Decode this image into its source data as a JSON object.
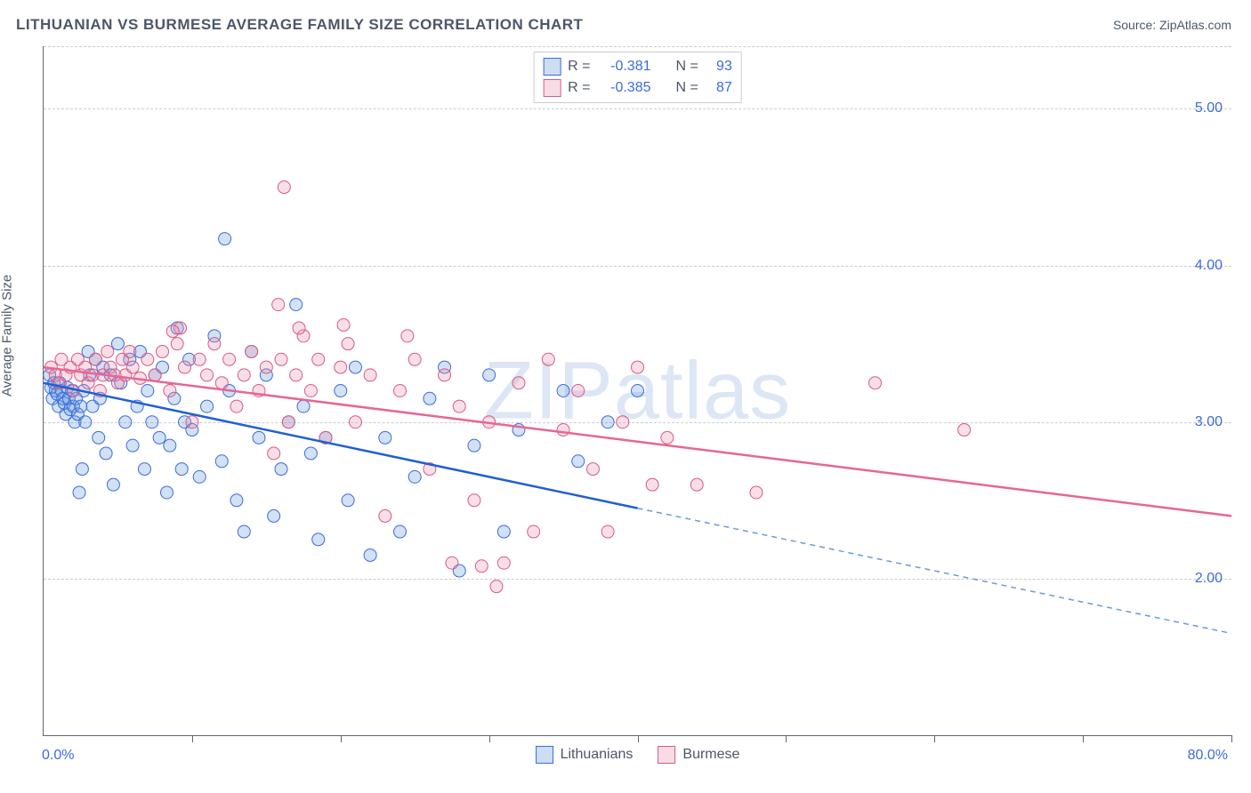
{
  "title": "LITHUANIAN VS BURMESE AVERAGE FAMILY SIZE CORRELATION CHART",
  "source_label": "Source:",
  "source_name": "ZipAtlas.com",
  "y_axis_label": "Average Family Size",
  "watermark": "ZIPatlas",
  "chart": {
    "type": "scatter",
    "xlim": [
      0,
      80
    ],
    "ylim": [
      1,
      5.4
    ],
    "x_tick_positions": [
      0,
      10,
      20,
      30,
      40,
      50,
      60,
      70,
      80
    ],
    "x_tick_first_label": "0.0%",
    "x_tick_last_label": "80.0%",
    "y_ticks": [
      2.0,
      3.0,
      4.0,
      5.0
    ],
    "y_tick_labels": [
      "2.00",
      "3.00",
      "4.00",
      "5.00"
    ],
    "grid_color": "#c8ccd2",
    "grid_dash": "4,4",
    "axis_color": "#5f6673",
    "background": "#ffffff",
    "tick_label_color": "#3a6cde",
    "marker_radius": 7,
    "marker_stroke_width": 1,
    "fill_opacity": 0.3,
    "trend_line_width": 2.5,
    "dash_pattern": "6,5",
    "series": [
      {
        "name": "Lithuanians",
        "fill": "#6a9bd8",
        "stroke": "#3a6cde",
        "R": "-0.381",
        "N": "93",
        "trend": {
          "x1": 0,
          "y1": 3.25,
          "x2": 40,
          "y2": 2.45,
          "extend_to": 80,
          "main_color": "#1e5fd6",
          "ext_color": "#6a9bd8"
        },
        "points": [
          [
            0.4,
            3.3
          ],
          [
            0.5,
            3.22
          ],
          [
            0.6,
            3.15
          ],
          [
            0.7,
            3.25
          ],
          [
            0.8,
            3.2
          ],
          [
            0.9,
            3.18
          ],
          [
            1.0,
            3.1
          ],
          [
            1.1,
            3.25
          ],
          [
            1.2,
            3.2
          ],
          [
            1.3,
            3.15
          ],
          [
            1.4,
            3.12
          ],
          [
            1.5,
            3.05
          ],
          [
            1.6,
            3.22
          ],
          [
            1.7,
            3.15
          ],
          [
            1.8,
            3.08
          ],
          [
            1.9,
            3.2
          ],
          [
            2.0,
            3.1
          ],
          [
            2.1,
            3.0
          ],
          [
            2.2,
            3.15
          ],
          [
            2.3,
            3.05
          ],
          [
            2.5,
            3.1
          ],
          [
            2.6,
            2.7
          ],
          [
            2.7,
            3.2
          ],
          [
            2.8,
            3.0
          ],
          [
            3.0,
            3.45
          ],
          [
            3.1,
            3.3
          ],
          [
            3.3,
            3.1
          ],
          [
            3.5,
            3.4
          ],
          [
            3.7,
            2.9
          ],
          [
            3.8,
            3.15
          ],
          [
            4.0,
            3.35
          ],
          [
            4.2,
            2.8
          ],
          [
            4.5,
            3.3
          ],
          [
            4.7,
            2.6
          ],
          [
            5.0,
            3.5
          ],
          [
            5.2,
            3.25
          ],
          [
            5.5,
            3.0
          ],
          [
            5.8,
            3.4
          ],
          [
            6.0,
            2.85
          ],
          [
            6.3,
            3.1
          ],
          [
            6.5,
            3.45
          ],
          [
            6.8,
            2.7
          ],
          [
            7.0,
            3.2
          ],
          [
            7.3,
            3.0
          ],
          [
            7.5,
            3.3
          ],
          [
            7.8,
            2.9
          ],
          [
            8.0,
            3.35
          ],
          [
            8.3,
            2.55
          ],
          [
            8.5,
            2.85
          ],
          [
            8.8,
            3.15
          ],
          [
            9.0,
            3.6
          ],
          [
            9.3,
            2.7
          ],
          [
            9.5,
            3.0
          ],
          [
            9.8,
            3.4
          ],
          [
            10.0,
            2.95
          ],
          [
            10.5,
            2.65
          ],
          [
            11.0,
            3.1
          ],
          [
            11.5,
            3.55
          ],
          [
            12.0,
            2.75
          ],
          [
            12.5,
            3.2
          ],
          [
            13.0,
            2.5
          ],
          [
            13.5,
            2.3
          ],
          [
            14.0,
            3.45
          ],
          [
            14.5,
            2.9
          ],
          [
            15.0,
            3.3
          ],
          [
            15.5,
            2.4
          ],
          [
            16.0,
            2.7
          ],
          [
            16.5,
            3.0
          ],
          [
            17.0,
            3.75
          ],
          [
            17.5,
            3.1
          ],
          [
            18.0,
            2.8
          ],
          [
            18.5,
            2.25
          ],
          [
            19.0,
            2.9
          ],
          [
            20.0,
            3.2
          ],
          [
            20.5,
            2.5
          ],
          [
            21.0,
            3.35
          ],
          [
            22.0,
            2.15
          ],
          [
            23.0,
            2.9
          ],
          [
            24.0,
            2.3
          ],
          [
            25.0,
            2.65
          ],
          [
            26.0,
            3.15
          ],
          [
            27.0,
            3.35
          ],
          [
            28.0,
            2.05
          ],
          [
            29.0,
            2.85
          ],
          [
            30.0,
            3.3
          ],
          [
            31.0,
            2.3
          ],
          [
            32.0,
            2.95
          ],
          [
            35.0,
            3.2
          ],
          [
            36.0,
            2.75
          ],
          [
            38.0,
            3.0
          ],
          [
            40.0,
            3.2
          ],
          [
            12.2,
            4.17
          ],
          [
            2.4,
            2.55
          ]
        ]
      },
      {
        "name": "Burmese",
        "fill": "#e795b0",
        "stroke": "#d85a85",
        "R": "-0.385",
        "N": "87",
        "trend": {
          "x1": 0,
          "y1": 3.35,
          "x2": 80,
          "y2": 2.4,
          "extend_to": null,
          "main_color": "#e86595",
          "ext_color": null
        },
        "points": [
          [
            0.5,
            3.35
          ],
          [
            0.8,
            3.3
          ],
          [
            1.0,
            3.25
          ],
          [
            1.2,
            3.4
          ],
          [
            1.5,
            3.3
          ],
          [
            1.8,
            3.35
          ],
          [
            2.0,
            3.2
          ],
          [
            2.3,
            3.4
          ],
          [
            2.5,
            3.3
          ],
          [
            2.8,
            3.35
          ],
          [
            3.0,
            3.25
          ],
          [
            3.3,
            3.3
          ],
          [
            3.5,
            3.4
          ],
          [
            3.8,
            3.2
          ],
          [
            4.0,
            3.3
          ],
          [
            4.3,
            3.45
          ],
          [
            4.5,
            3.35
          ],
          [
            4.8,
            3.3
          ],
          [
            5.0,
            3.25
          ],
          [
            5.3,
            3.4
          ],
          [
            5.5,
            3.3
          ],
          [
            5.8,
            3.45
          ],
          [
            6.0,
            3.35
          ],
          [
            6.5,
            3.28
          ],
          [
            7.0,
            3.4
          ],
          [
            7.5,
            3.3
          ],
          [
            8.0,
            3.45
          ],
          [
            8.5,
            3.2
          ],
          [
            9.0,
            3.5
          ],
          [
            9.5,
            3.35
          ],
          [
            10.0,
            3.0
          ],
          [
            10.5,
            3.4
          ],
          [
            11.0,
            3.3
          ],
          [
            11.5,
            3.5
          ],
          [
            12.0,
            3.25
          ],
          [
            12.5,
            3.4
          ],
          [
            13.0,
            3.1
          ],
          [
            13.5,
            3.3
          ],
          [
            14.0,
            3.45
          ],
          [
            14.5,
            3.2
          ],
          [
            15.0,
            3.35
          ],
          [
            15.5,
            2.8
          ],
          [
            16.0,
            3.4
          ],
          [
            16.5,
            3.0
          ],
          [
            17.0,
            3.3
          ],
          [
            17.5,
            3.55
          ],
          [
            18.0,
            3.2
          ],
          [
            18.5,
            3.4
          ],
          [
            19.0,
            2.9
          ],
          [
            20.0,
            3.35
          ],
          [
            20.5,
            3.5
          ],
          [
            21.0,
            3.0
          ],
          [
            22.0,
            3.3
          ],
          [
            23.0,
            2.4
          ],
          [
            24.0,
            3.2
          ],
          [
            25.0,
            3.4
          ],
          [
            26.0,
            2.7
          ],
          [
            27.0,
            3.3
          ],
          [
            28.0,
            3.1
          ],
          [
            29.0,
            2.5
          ],
          [
            30.0,
            3.0
          ],
          [
            30.5,
            1.95
          ],
          [
            31.0,
            2.1
          ],
          [
            32.0,
            3.25
          ],
          [
            33.0,
            2.3
          ],
          [
            34.0,
            3.4
          ],
          [
            35.0,
            2.95
          ],
          [
            36.0,
            3.2
          ],
          [
            37.0,
            2.7
          ],
          [
            38.0,
            2.3
          ],
          [
            39.0,
            3.0
          ],
          [
            40.0,
            3.35
          ],
          [
            41.0,
            2.6
          ],
          [
            42.0,
            2.9
          ],
          [
            44.0,
            2.6
          ],
          [
            48.0,
            2.55
          ],
          [
            56.0,
            3.25
          ],
          [
            62.0,
            2.95
          ],
          [
            16.2,
            4.5
          ],
          [
            15.8,
            3.75
          ],
          [
            17.2,
            3.6
          ],
          [
            20.2,
            3.62
          ],
          [
            24.5,
            3.55
          ],
          [
            9.2,
            3.6
          ],
          [
            8.7,
            3.58
          ],
          [
            29.5,
            2.08
          ],
          [
            27.5,
            2.1
          ]
        ]
      }
    ],
    "stats_box": {
      "r_label": "R =",
      "n_label": "N ="
    },
    "legend_swatch_border_width": 1
  }
}
